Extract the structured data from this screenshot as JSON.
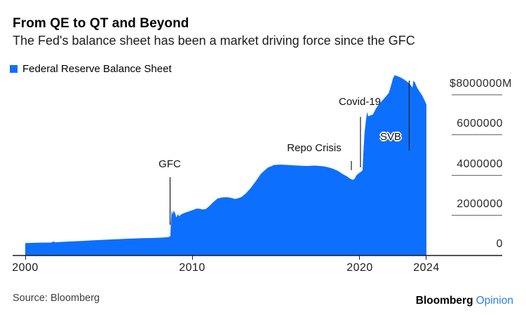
{
  "header": {
    "title": "From QE to QT and Beyond",
    "subtitle": "The Fed's balance sheet has been a market driving force since the GFC"
  },
  "legend": {
    "label": "Federal Reserve Balance Sheet"
  },
  "axis": {
    "y_ticks": [
      "$8000000M",
      "6000000",
      "4000000",
      "2000000",
      "0"
    ],
    "x_ticks": [
      "2000",
      "2010",
      "2020",
      "2024"
    ]
  },
  "footer": {
    "source": "Source: Bloomberg",
    "brand": "Bloomberg",
    "brand_suffix": "Opinion"
  },
  "colors": {
    "area": "#0d6ffe",
    "brand_blue": "#2e7eea"
  },
  "chart_data": {
    "type": "area",
    "title": "From QE to QT and Beyond",
    "series_name": "Federal Reserve Balance Sheet",
    "unit": "$M",
    "x_range": [
      2000,
      2024
    ],
    "ylim": [
      0,
      8000000
    ],
    "y_tick_values": [
      0,
      2000000,
      4000000,
      6000000,
      8000000
    ],
    "x_tick_values": [
      2000,
      2010,
      2020,
      2024
    ],
    "legend_position": "top-left",
    "grid": false,
    "annotations": [
      {
        "label": "GFC",
        "year": 2008.7,
        "value": 960000
      },
      {
        "label": "Repo Crisis",
        "year": 2019.6,
        "value": 3760000
      },
      {
        "label": "Covid-19",
        "year": 2020.1,
        "value": 4170000
      },
      {
        "label": "SVB",
        "year": 2023.0,
        "value": 8530000
      }
    ],
    "points": [
      [
        2000.0,
        620000
      ],
      [
        2000.5,
        630000
      ],
      [
        2001.0,
        640000
      ],
      [
        2001.55,
        645000
      ],
      [
        2001.71,
        700000
      ],
      [
        2001.78,
        655000
      ],
      [
        2002.3,
        680000
      ],
      [
        2003.0,
        710000
      ],
      [
        2004.0,
        750000
      ],
      [
        2005.0,
        790000
      ],
      [
        2006.0,
        830000
      ],
      [
        2007.0,
        860000
      ],
      [
        2007.6,
        870000
      ],
      [
        2008.2,
        890000
      ],
      [
        2008.55,
        910000
      ],
      [
        2008.68,
        960000
      ],
      [
        2008.72,
        1750000
      ],
      [
        2008.76,
        2260000
      ],
      [
        2008.82,
        2050000
      ],
      [
        2008.88,
        2240000
      ],
      [
        2008.96,
        2120000
      ],
      [
        2009.05,
        1890000
      ],
      [
        2009.12,
        2060000
      ],
      [
        2009.2,
        1950000
      ],
      [
        2009.3,
        2020000
      ],
      [
        2009.45,
        2090000
      ],
      [
        2009.6,
        2140000
      ],
      [
        2009.8,
        2190000
      ],
      [
        2010.0,
        2250000
      ],
      [
        2010.25,
        2330000
      ],
      [
        2010.45,
        2320000
      ],
      [
        2010.6,
        2290000
      ],
      [
        2010.8,
        2310000
      ],
      [
        2011.0,
        2450000
      ],
      [
        2011.25,
        2650000
      ],
      [
        2011.5,
        2830000
      ],
      [
        2011.75,
        2880000
      ],
      [
        2012.0,
        2900000
      ],
      [
        2012.3,
        2870000
      ],
      [
        2012.55,
        2810000
      ],
      [
        2012.75,
        2850000
      ],
      [
        2012.95,
        2910000
      ],
      [
        2013.2,
        3090000
      ],
      [
        2013.5,
        3370000
      ],
      [
        2013.8,
        3700000
      ],
      [
        2014.1,
        4060000
      ],
      [
        2014.5,
        4360000
      ],
      [
        2014.9,
        4500000
      ],
      [
        2015.3,
        4520000
      ],
      [
        2015.7,
        4500000
      ],
      [
        2016.1,
        4480000
      ],
      [
        2016.5,
        4460000
      ],
      [
        2016.9,
        4450000
      ],
      [
        2017.3,
        4470000
      ],
      [
        2017.7,
        4440000
      ],
      [
        2018.0,
        4410000
      ],
      [
        2018.35,
        4330000
      ],
      [
        2018.7,
        4210000
      ],
      [
        2019.0,
        4040000
      ],
      [
        2019.25,
        3930000
      ],
      [
        2019.45,
        3810000
      ],
      [
        2019.6,
        3760000
      ],
      [
        2019.72,
        3830000
      ],
      [
        2019.8,
        3970000
      ],
      [
        2019.9,
        4050000
      ],
      [
        2020.0,
        4120000
      ],
      [
        2020.1,
        4170000
      ],
      [
        2020.18,
        4240000
      ],
      [
        2020.22,
        5000000
      ],
      [
        2020.3,
        6100000
      ],
      [
        2020.38,
        6700000
      ],
      [
        2020.45,
        7130000
      ],
      [
        2020.52,
        6920000
      ],
      [
        2020.65,
        6960000
      ],
      [
        2020.8,
        7010000
      ],
      [
        2021.0,
        7330000
      ],
      [
        2021.25,
        7600000
      ],
      [
        2021.5,
        7830000
      ],
      [
        2021.75,
        8080000
      ],
      [
        2021.9,
        8500000
      ],
      [
        2022.0,
        8800000
      ],
      [
        2022.1,
        8960000
      ],
      [
        2022.25,
        8920000
      ],
      [
        2022.45,
        8850000
      ],
      [
        2022.65,
        8760000
      ],
      [
        2022.85,
        8630000
      ],
      [
        2023.0,
        8530000
      ],
      [
        2023.1,
        8420000
      ],
      [
        2023.17,
        8340000
      ],
      [
        2023.22,
        8690000
      ],
      [
        2023.3,
        8620000
      ],
      [
        2023.45,
        8330000
      ],
      [
        2023.6,
        8130000
      ],
      [
        2023.75,
        7950000
      ],
      [
        2023.9,
        7690000
      ],
      [
        2024.0,
        7500000
      ]
    ]
  }
}
